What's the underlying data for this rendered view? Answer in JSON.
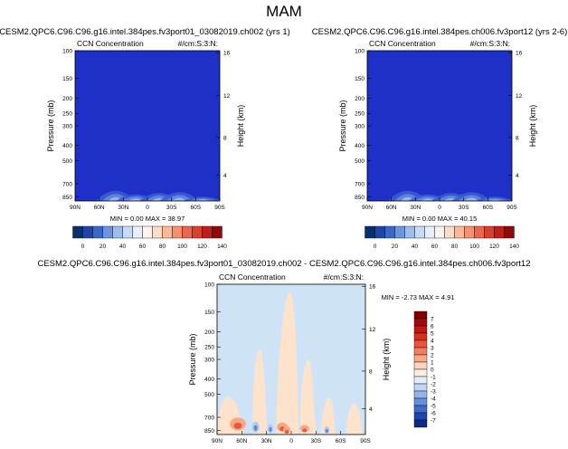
{
  "figure_title": "MAM",
  "colors": {
    "field_background": "#1e30c8",
    "diff_background": "#cfe3f7",
    "diff_pos_light": "#fde2cc",
    "diff_pos_mid": "#f7a784",
    "diff_pos_strong": "#e55a3c",
    "diff_neg_light": "#aecbf0",
    "diff_neg_mid": "#5c86d8"
  },
  "seq_colorbar": {
    "labels": [
      "0",
      "20",
      "40",
      "60",
      "80",
      "100",
      "120",
      "140"
    ],
    "colors": [
      "#08306b",
      "#1f45a8",
      "#3a68c8",
      "#6c95dd",
      "#9cbdee",
      "#c6dbf5",
      "#e6efff",
      "#fff5ee",
      "#fddcc7",
      "#fbb99a",
      "#f69072",
      "#ea6650",
      "#d9412f",
      "#bd1f1a",
      "#8e0b0b"
    ]
  },
  "diff_colorbar": {
    "labels": [
      "7",
      "6",
      "5",
      "4",
      "3",
      "2",
      "1",
      "0",
      "-1",
      "-2",
      "-3",
      "-4",
      "-5",
      "-6",
      "-7"
    ],
    "colors": [
      "#7f0000",
      "#a10b0b",
      "#c01818",
      "#d7301f",
      "#e8553c",
      "#f27e60",
      "#f9a98a",
      "#fdd3bd",
      "#fdeee4",
      "#e3eef9",
      "#bfd5f2",
      "#93b5e8",
      "#6890d9",
      "#416cc6",
      "#2046ad",
      "#0a2a8a"
    ]
  },
  "chart_data": [
    {
      "type": "heatmap",
      "title": "CESM2.QPC6.C96.C96.g16.intel.384pes.fv3port01_03082019.ch002 (yrs 1)",
      "left_label": "CCN Concentration",
      "right_label": "#/cm:S:3:N:",
      "ylabel": "Pressure (mb)",
      "ylabel_right": "Height (km)",
      "x_ticks": [
        "90N",
        "60N",
        "30N",
        "0",
        "30S",
        "60S",
        "90S"
      ],
      "y_ticks": [
        "100",
        "150",
        "200",
        "250",
        "300",
        "400",
        "500",
        "700",
        "850"
      ],
      "y_ticks_right": [
        "16",
        "12",
        "8",
        "4"
      ],
      "stats": "MIN =  0.00  MAX =  38.97",
      "min": 0.0,
      "max": 38.97
    },
    {
      "type": "heatmap",
      "title": "CESM2.QPC6.C96.C96.g16.intel.384pes.ch006.fv3port12 (yrs 2-6)",
      "left_label": "CCN Concentration",
      "right_label": "#/cm:S:3:N:",
      "ylabel": "Pressure (mb)",
      "ylabel_right": "Height (km)",
      "x_ticks": [
        "90N",
        "60N",
        "30N",
        "0",
        "30S",
        "60S",
        "90S"
      ],
      "y_ticks": [
        "100",
        "150",
        "200",
        "250",
        "300",
        "400",
        "500",
        "700",
        "850"
      ],
      "y_ticks_right": [
        "16",
        "12",
        "8",
        "4"
      ],
      "stats": "MIN =  0.00  MAX =  40.15",
      "min": 0.0,
      "max": 40.15
    },
    {
      "type": "heatmap",
      "title": "CESM2.QPC6.C96.C96.g16.intel.384pes.fv3port01_03082019.ch002 - CESM2.QPC6.C96.C96.g16.intel.384pes.ch006.fv3port12",
      "left_label": "CCN Concentration",
      "right_label": "#/cm:S:3:N:",
      "ylabel": "Pressure (mb)",
      "ylabel_right": "Height (km)",
      "x_ticks": [
        "90N",
        "60N",
        "30N",
        "0",
        "30S",
        "60S",
        "90S"
      ],
      "y_ticks": [
        "100",
        "150",
        "200",
        "250",
        "300",
        "400",
        "500",
        "700",
        "850"
      ],
      "y_ticks_right": [
        "16",
        "12",
        "8",
        "4"
      ],
      "stats": "MIN = -2.73  MAX =  4.91",
      "min": -2.73,
      "max": 4.91
    }
  ]
}
